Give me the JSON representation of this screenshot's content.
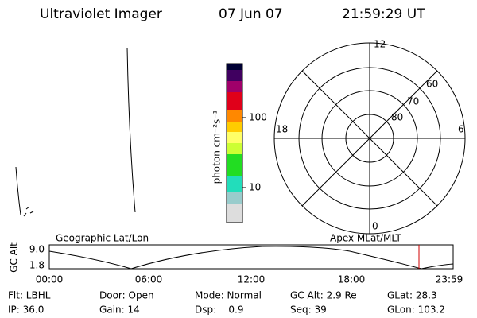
{
  "header": {
    "instrument": "Ultraviolet Imager",
    "date": "07 Jun 07",
    "time": "21:59:29 UT"
  },
  "colorbar": {
    "unit": "photon cm⁻²s⁻¹",
    "ticks": [
      "100",
      "10"
    ]
  },
  "polar": {
    "mlt_labels": [
      "12",
      "18",
      "6",
      "0"
    ],
    "lat_labels": [
      "60",
      "70",
      "80"
    ]
  },
  "timeline": {
    "left_title": "Geographic Lat/Lon",
    "right_title": "Apex MLat/MLT",
    "axis_label": "GC Alt",
    "y_labels": [
      "9.0",
      "1.8"
    ],
    "time_labels": [
      "00:00",
      "06:00",
      "12:00",
      "18:00",
      "23:59"
    ]
  },
  "info": {
    "rows": [
      [
        "Flt: LBHL",
        "Door: Open",
        "Mode: Normal",
        "GC Alt: 2.9 Re",
        "GLat: 28.3"
      ],
      [
        "IP: 36.0",
        "Gain: 14",
        "Dsp:    0.9",
        "Seq: 39",
        "GLon: 103.2"
      ]
    ]
  }
}
